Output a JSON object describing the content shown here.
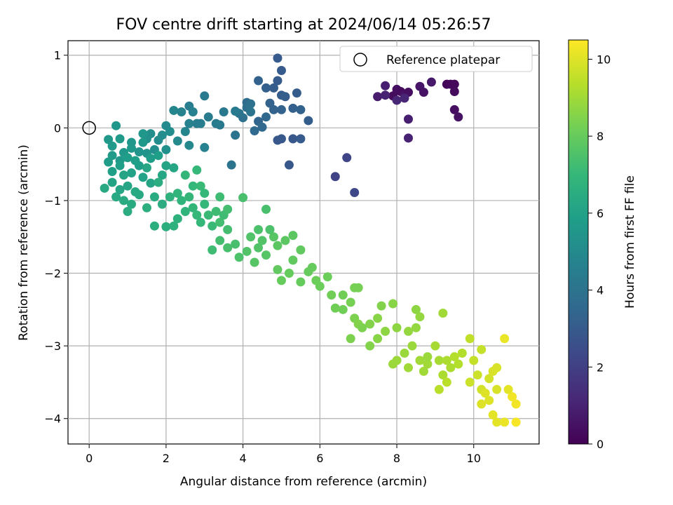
{
  "chart_data": {
    "type": "scatter",
    "title": "FOV centre drift starting at 2024/06/14 05:26:57",
    "xlabel": "Angular distance from reference (arcmin)",
    "ylabel": "Rotation from reference (arcmin)",
    "xlim": [
      -0.55,
      11.7
    ],
    "ylim": [
      -4.35,
      1.2
    ],
    "xticks": [
      0,
      2,
      4,
      6,
      8,
      10
    ],
    "yticks": [
      -4,
      -3,
      -2,
      -1,
      0,
      1
    ],
    "grid": true,
    "legend": {
      "position": "top-right",
      "entries": [
        "Reference platepar"
      ]
    },
    "reference_point": {
      "x": 0,
      "y": 0
    },
    "colorbar": {
      "label": "Hours from first FF file",
      "range": [
        0,
        10.5
      ],
      "ticks": [
        0,
        2,
        4,
        6,
        8,
        10
      ],
      "colormap": "viridis"
    },
    "colormap_stops": [
      "#440154",
      "#482878",
      "#3e4989",
      "#31688e",
      "#26828e",
      "#1f9e89",
      "#35b779",
      "#6ece58",
      "#b5de2b",
      "#fde725"
    ],
    "series": [
      {
        "points": [
          [
            7.9,
            0.44,
            0.3
          ],
          [
            8.0,
            0.53,
            0.4
          ],
          [
            8.1,
            0.5,
            0.3
          ],
          [
            8.2,
            0.46,
            0.5
          ],
          [
            8.3,
            0.49,
            0.4
          ],
          [
            8.6,
            0.57,
            0.6
          ],
          [
            8.7,
            0.49,
            0.5
          ],
          [
            8.9,
            0.63,
            0.7
          ],
          [
            9.3,
            0.6,
            0.1
          ],
          [
            9.4,
            0.6,
            0.2
          ],
          [
            9.5,
            0.6,
            0.2
          ],
          [
            9.5,
            0.5,
            0.3
          ],
          [
            9.5,
            0.25,
            0.4
          ],
          [
            9.6,
            0.15,
            0.5
          ],
          [
            7.7,
            0.58,
            0.9
          ],
          [
            7.5,
            0.43,
            0.8
          ],
          [
            7.7,
            0.45,
            1.0
          ],
          [
            8.3,
            0.12,
            0.9
          ],
          [
            8.3,
            -0.14,
            1.0
          ],
          [
            8.0,
            0.38,
            1.1
          ],
          [
            8.2,
            0.41,
            1.1
          ],
          [
            6.7,
            -0.41,
            2.2
          ],
          [
            6.4,
            -0.67,
            2.1
          ],
          [
            6.9,
            -0.89,
            2.3
          ],
          [
            4.9,
            0.96,
            3.0
          ],
          [
            5.0,
            0.79,
            3.0
          ],
          [
            4.8,
            0.55,
            3.1
          ],
          [
            4.9,
            0.65,
            3.0
          ],
          [
            5.0,
            0.45,
            3.1
          ],
          [
            5.1,
            0.43,
            3.1
          ],
          [
            5.3,
            0.27,
            3.2
          ],
          [
            5.4,
            0.48,
            3.1
          ],
          [
            4.4,
            0.65,
            3.3
          ],
          [
            4.6,
            0.55,
            3.2
          ],
          [
            4.7,
            0.34,
            3.3
          ],
          [
            4.8,
            0.25,
            3.3
          ],
          [
            5.0,
            0.25,
            3.3
          ],
          [
            5.5,
            0.25,
            3.3
          ],
          [
            4.9,
            -0.17,
            2.9
          ],
          [
            5.0,
            -0.15,
            2.9
          ],
          [
            5.3,
            -0.15,
            2.9
          ],
          [
            5.5,
            -0.15,
            3.0
          ],
          [
            5.2,
            -0.51,
            2.9
          ],
          [
            5.7,
            0.1,
            3.1
          ],
          [
            4.4,
            0.09,
            3.4
          ],
          [
            4.5,
            0.01,
            3.5
          ],
          [
            4.6,
            0.15,
            3.5
          ],
          [
            4.3,
            -0.04,
            3.6
          ],
          [
            4.1,
            0.35,
            3.7
          ],
          [
            4.1,
            0.28,
            3.8
          ],
          [
            4.0,
            0.14,
            3.9
          ],
          [
            3.9,
            0.2,
            4.0
          ],
          [
            4.2,
            0.33,
            3.9
          ],
          [
            4.2,
            0.22,
            4.0
          ],
          [
            3.8,
            -0.1,
            4.0
          ],
          [
            3.7,
            -0.51,
            4.0
          ],
          [
            3.4,
            0.04,
            4.2
          ],
          [
            3.5,
            0.22,
            4.2
          ],
          [
            3.8,
            0.23,
            4.3
          ],
          [
            3.0,
            0.44,
            4.3
          ],
          [
            3.1,
            0.15,
            4.4
          ],
          [
            2.8,
            0.06,
            4.5
          ],
          [
            2.6,
            0.3,
            4.5
          ],
          [
            2.7,
            0.22,
            4.6
          ],
          [
            3.0,
            -0.27,
            4.6
          ],
          [
            2.5,
            -0.05,
            4.8
          ],
          [
            2.4,
            0.22,
            4.7
          ],
          [
            2.2,
            0.24,
            4.8
          ],
          [
            3.3,
            0.06,
            4.4
          ],
          [
            2.9,
            0.06,
            4.5
          ],
          [
            2.6,
            0.06,
            4.6
          ],
          [
            2.6,
            -0.24,
            4.9
          ],
          [
            2.0,
            0.03,
            5.0
          ],
          [
            1.9,
            -0.1,
            5.1
          ],
          [
            2.3,
            -0.18,
            5.0
          ],
          [
            2.1,
            -0.05,
            5.1
          ],
          [
            1.6,
            -0.08,
            5.2
          ],
          [
            1.8,
            -0.17,
            5.1
          ],
          [
            1.7,
            -0.3,
            5.2
          ],
          [
            1.5,
            -0.15,
            5.3
          ],
          [
            1.5,
            -0.35,
            5.4
          ],
          [
            1.4,
            -0.08,
            5.5
          ],
          [
            1.3,
            -0.33,
            5.4
          ],
          [
            1.1,
            -0.2,
            5.5
          ],
          [
            1.1,
            -0.28,
            5.6
          ],
          [
            0.9,
            -0.34,
            5.6
          ],
          [
            0.8,
            -0.15,
            5.7
          ],
          [
            0.8,
            -0.45,
            5.6
          ],
          [
            0.7,
            0.03,
            5.5
          ],
          [
            0.6,
            -0.25,
            5.7
          ],
          [
            0.5,
            -0.16,
            5.6
          ],
          [
            0.6,
            -0.38,
            5.7
          ],
          [
            1.0,
            -0.41,
            5.8
          ],
          [
            1.3,
            -0.52,
            5.9
          ],
          [
            0.5,
            -0.47,
            5.8
          ],
          [
            0.6,
            -0.6,
            5.9
          ],
          [
            0.8,
            -0.52,
            5.9
          ],
          [
            1.1,
            -0.62,
            6.0
          ],
          [
            1.4,
            -0.68,
            6.0
          ],
          [
            1.6,
            -0.76,
            6.1
          ],
          [
            1.9,
            -0.65,
            6.2
          ],
          [
            2.0,
            -0.52,
            6.1
          ],
          [
            1.8,
            -0.38,
            5.9
          ],
          [
            2.2,
            -0.55,
            6.2
          ],
          [
            0.6,
            -0.75,
            6.1
          ],
          [
            0.8,
            -0.85,
            6.2
          ],
          [
            1.0,
            -0.8,
            6.2
          ],
          [
            1.2,
            -0.88,
            6.3
          ],
          [
            0.4,
            -0.83,
            6.3
          ],
          [
            0.9,
            -1.0,
            6.4
          ],
          [
            1.1,
            -1.05,
            6.4
          ],
          [
            1.3,
            -0.92,
            6.3
          ],
          [
            1.7,
            -0.95,
            6.4
          ],
          [
            1.9,
            -1.05,
            6.5
          ],
          [
            1.5,
            -1.1,
            6.6
          ],
          [
            1.0,
            -1.15,
            6.5
          ],
          [
            1.7,
            -1.35,
            6.6
          ],
          [
            2.0,
            -1.36,
            6.6
          ],
          [
            2.2,
            -1.35,
            6.7
          ],
          [
            2.3,
            -1.25,
            6.7
          ],
          [
            2.5,
            -1.15,
            6.8
          ],
          [
            2.4,
            -1.0,
            6.8
          ],
          [
            2.7,
            -1.1,
            6.9
          ],
          [
            2.8,
            -1.2,
            7.0
          ],
          [
            2.9,
            -1.3,
            7.0
          ],
          [
            2.6,
            -0.95,
            6.9
          ],
          [
            2.7,
            -0.8,
            7.0
          ],
          [
            2.9,
            -0.8,
            7.1
          ],
          [
            2.8,
            -0.58,
            7.0
          ],
          [
            2.5,
            -0.65,
            6.9
          ],
          [
            3.0,
            -0.9,
            7.0
          ],
          [
            3.1,
            -1.2,
            7.1
          ],
          [
            3.2,
            -1.35,
            7.1
          ],
          [
            3.3,
            -1.15,
            7.2
          ],
          [
            3.4,
            -1.3,
            7.3
          ],
          [
            3.6,
            -1.4,
            7.3
          ],
          [
            3.4,
            -1.55,
            7.3
          ],
          [
            3.2,
            -1.68,
            7.2
          ],
          [
            3.6,
            -1.65,
            7.4
          ],
          [
            3.8,
            -1.6,
            7.4
          ],
          [
            3.9,
            -1.78,
            7.5
          ],
          [
            4.1,
            -1.7,
            7.6
          ],
          [
            4.0,
            -0.96,
            7.4
          ],
          [
            4.4,
            -1.4,
            7.5
          ],
          [
            4.6,
            -1.12,
            7.4
          ],
          [
            4.2,
            -1.5,
            7.6
          ],
          [
            4.5,
            -1.55,
            7.6
          ],
          [
            4.3,
            -1.85,
            7.7
          ],
          [
            4.6,
            -1.75,
            7.7
          ],
          [
            4.8,
            -1.5,
            7.7
          ],
          [
            4.9,
            -1.62,
            7.8
          ],
          [
            5.1,
            -1.55,
            7.8
          ],
          [
            5.3,
            -1.48,
            7.8
          ],
          [
            5.5,
            -1.68,
            7.9
          ],
          [
            5.3,
            -1.82,
            7.9
          ],
          [
            4.9,
            -1.95,
            7.9
          ],
          [
            5.0,
            -2.1,
            8.0
          ],
          [
            5.2,
            -2.0,
            8.0
          ],
          [
            5.5,
            -2.12,
            8.0
          ],
          [
            5.7,
            -1.98,
            8.0
          ],
          [
            5.9,
            -2.1,
            8.1
          ],
          [
            6.0,
            -2.18,
            8.1
          ],
          [
            6.3,
            -2.3,
            8.2
          ],
          [
            6.4,
            -2.48,
            8.2
          ],
          [
            6.6,
            -2.5,
            8.2
          ],
          [
            6.8,
            -2.4,
            8.3
          ],
          [
            6.9,
            -2.2,
            8.3
          ],
          [
            7.0,
            -2.2,
            8.3
          ],
          [
            6.9,
            -2.62,
            8.4
          ],
          [
            6.8,
            -2.9,
            8.4
          ],
          [
            7.0,
            -2.7,
            8.5
          ],
          [
            7.3,
            -2.7,
            8.5
          ],
          [
            7.5,
            -2.62,
            8.6
          ],
          [
            7.6,
            -2.45,
            8.5
          ],
          [
            7.9,
            -2.42,
            8.6
          ],
          [
            7.5,
            -2.9,
            8.6
          ],
          [
            7.7,
            -2.8,
            8.7
          ],
          [
            8.0,
            -2.75,
            8.7
          ],
          [
            8.3,
            -2.8,
            8.8
          ],
          [
            8.5,
            -2.75,
            8.8
          ],
          [
            8.6,
            -2.6,
            8.8
          ],
          [
            8.4,
            -3.0,
            8.9
          ],
          [
            8.2,
            -3.1,
            8.9
          ],
          [
            8.0,
            -3.2,
            8.9
          ],
          [
            7.9,
            -3.25,
            8.9
          ],
          [
            8.3,
            -3.3,
            9.0
          ],
          [
            8.6,
            -3.2,
            9.0
          ],
          [
            8.8,
            -3.25,
            9.0
          ],
          [
            9.0,
            -3.0,
            9.1
          ],
          [
            9.1,
            -3.2,
            9.1
          ],
          [
            9.2,
            -3.4,
            9.2
          ],
          [
            9.3,
            -3.2,
            9.2
          ],
          [
            9.5,
            -3.15,
            9.3
          ],
          [
            9.7,
            -3.1,
            9.3
          ],
          [
            9.6,
            -3.25,
            9.3
          ],
          [
            9.3,
            -3.5,
            9.4
          ],
          [
            9.1,
            -3.6,
            9.4
          ],
          [
            9.9,
            -2.9,
            9.5
          ],
          [
            10.2,
            -3.05,
            9.6
          ],
          [
            10.0,
            -3.2,
            9.6
          ],
          [
            10.1,
            -3.4,
            9.7
          ],
          [
            9.9,
            -3.5,
            9.7
          ],
          [
            10.2,
            -3.6,
            9.8
          ],
          [
            10.4,
            -3.45,
            9.8
          ],
          [
            10.5,
            -3.35,
            9.9
          ],
          [
            10.6,
            -3.3,
            9.9
          ],
          [
            10.6,
            -3.6,
            9.9
          ],
          [
            10.4,
            -3.75,
            10.0
          ],
          [
            10.2,
            -3.8,
            10.0
          ],
          [
            10.5,
            -3.95,
            10.1
          ],
          [
            10.6,
            -4.05,
            10.1
          ],
          [
            10.8,
            -4.05,
            10.2
          ],
          [
            10.8,
            -2.9,
            10.2
          ],
          [
            11.0,
            -3.7,
            10.3
          ],
          [
            11.1,
            -3.8,
            10.3
          ],
          [
            11.1,
            -4.05,
            10.4
          ],
          [
            10.9,
            -3.6,
            10.1
          ],
          [
            10.3,
            -3.65,
            10.0
          ],
          [
            8.5,
            -2.5,
            8.7
          ],
          [
            8.8,
            -3.15,
            8.9
          ],
          [
            8.7,
            -3.35,
            9.0
          ],
          [
            9.2,
            -2.55,
            9.0
          ],
          [
            9.4,
            -3.3,
            9.2
          ],
          [
            7.3,
            -3.0,
            8.5
          ],
          [
            7.1,
            -2.75,
            8.4
          ],
          [
            6.6,
            -2.3,
            8.2
          ],
          [
            6.2,
            -2.05,
            8.1
          ],
          [
            5.8,
            -1.92,
            8.0
          ],
          [
            4.4,
            -1.65,
            7.6
          ],
          [
            4.7,
            -1.4,
            7.5
          ],
          [
            3.5,
            -1.2,
            7.2
          ],
          [
            3.6,
            -1.12,
            7.3
          ],
          [
            3.4,
            -0.95,
            7.2
          ],
          [
            3.0,
            -1.05,
            7.0
          ],
          [
            2.3,
            -0.9,
            6.8
          ],
          [
            2.1,
            -0.95,
            6.7
          ],
          [
            1.8,
            -0.75,
            6.5
          ],
          [
            1.5,
            -0.55,
            6.2
          ],
          [
            1.2,
            -0.45,
            5.9
          ],
          [
            0.9,
            -0.65,
            6.1
          ],
          [
            0.7,
            -0.95,
            6.3
          ],
          [
            1.4,
            -0.2,
            5.6
          ],
          [
            1.6,
            -0.42,
            5.8
          ],
          [
            2.0,
            -0.3,
            5.3
          ]
        ]
      }
    ]
  }
}
